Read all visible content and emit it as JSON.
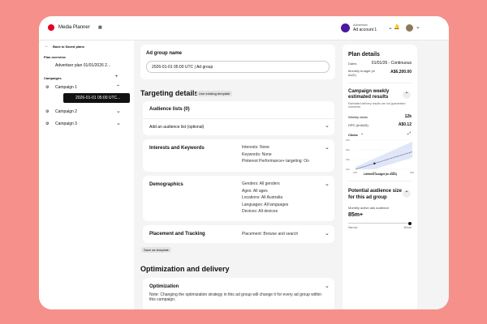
{
  "header": {
    "app_title": "Media Planner",
    "account_label": "Advertiser",
    "account_name": "Ad account 1"
  },
  "sidebar": {
    "back": "Back to Saved plans",
    "plan_overview_label": "Plan overview",
    "plan_name": "Advertiser plan 01/01/2026 2...",
    "campaigns_label": "Campaigns",
    "campaigns": [
      {
        "label": "Campaign 1"
      },
      {
        "label": "Campaign 2"
      },
      {
        "label": "Campaign 3"
      }
    ],
    "selected_ad_group": "2026-01-01 05:00 UTC..."
  },
  "main": {
    "ad_group_name_label": "Ad group name",
    "ad_group_name_value": "2026-01-01 05:00 UTC | Ad group",
    "targeting_title": "Targeting details",
    "use_template": "Use existing template",
    "audience_title": "Audience lists (0)",
    "audience_add": "Add an audience list (optional)",
    "interests_title": "Interests and Keywords",
    "interests": [
      "Interests: None",
      "Keywords: None",
      "Pinterest Performance+ targeting: On"
    ],
    "demographics_title": "Demographics",
    "demographics": [
      "Genders: All genders",
      "Ages: All ages",
      "Locations: All Australia",
      "Languages: All languages",
      "Devices: All devices"
    ],
    "placement_title": "Placement and Tracking",
    "placement": "Placement: Browse and search",
    "save_template": "Save as template",
    "optimization_section": "Optimization and delivery",
    "optimization_title": "Optimization",
    "optimization_note": "Note: Changing the optimization strategy in this ad group will change it for every ad group within this campaign."
  },
  "right": {
    "plan_details": "Plan details",
    "dates_label": "Dates",
    "dates_value": "01/01/26 - Continuous",
    "budget_label": "Monthly budget (in AUD)",
    "budget_value": "A$6,200.00",
    "weekly_title": "Campaign weekly estimated results",
    "weekly_note": "Estimated delivery results are not guaranteed outcomes",
    "clicks_label": "Weekly clicks",
    "clicks_value": "12k",
    "cpc_label": "CPC (in AUD)",
    "cpc_value": "A$0.12",
    "chart_metric": "Clicks",
    "audience_title": "Potential audience size for this ad group",
    "audience_label": "Monthly active ads audience",
    "audience_value": "85m+",
    "narrow": "Narrow",
    "broad": "Broad",
    "audience_level": 0.97
  },
  "chart_data": {
    "type": "line",
    "x": [
      200,
      250,
      300,
      350
    ],
    "y": [
      10000,
      13000,
      16000,
      19000
    ],
    "marker": {
      "x": 250,
      "y": 13000
    },
    "yticks": [
      "25k",
      "20k",
      "15k",
      "10k"
    ],
    "xticks": [
      "200",
      "250",
      "300",
      "350"
    ],
    "xlabel": "Lifetime budget (in AUD)",
    "ylim": [
      10000,
      25000
    ],
    "xlim": [
      200,
      350
    ]
  },
  "colors": {
    "background": "#f5918a",
    "brand": "#e60023",
    "selected": "#111111"
  }
}
